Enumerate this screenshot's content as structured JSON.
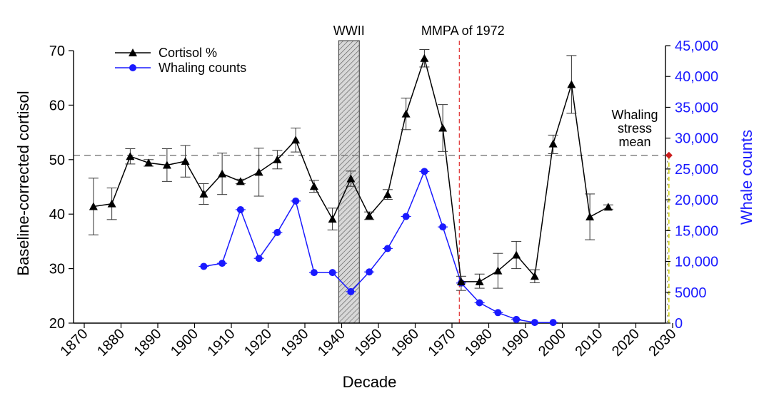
{
  "chart_data": {
    "type": "line",
    "title": "",
    "xlabel": "Decade",
    "ylabel_left": "Baseline-corrected cortisol",
    "ylabel_right": "Whale counts",
    "xlim": [
      1870,
      2030
    ],
    "ylim_left": [
      20,
      70
    ],
    "ylim_right": [
      0,
      45000
    ],
    "x_ticks": [
      "1870",
      "1880",
      "1890",
      "1900",
      "1910",
      "1920",
      "1930",
      "1940",
      "1950",
      "1960",
      "1970",
      "1980",
      "1990",
      "2000",
      "2010",
      "2020",
      "2030"
    ],
    "y_ticks_left": [
      "20",
      "30",
      "40",
      "50",
      "60",
      "70"
    ],
    "y_ticks_right": [
      "0",
      "5000",
      "10,000",
      "15,000",
      "20,000",
      "25,000",
      "30,000",
      "35,000",
      "40,000",
      "45,000"
    ],
    "legend_position": "top-left",
    "colors": {
      "cortisol": "#000000",
      "whaling": "#1a1aff",
      "mmpa_line": "#e03030",
      "stress_mean_marker": "#cc1f1f",
      "stress_mean_line": "#cccc00",
      "wwii_fill": "#d0d0d0"
    },
    "series": [
      {
        "name": "Cortisol %",
        "axis": "left",
        "marker": "triangle",
        "points": [
          {
            "x": 1872.5,
            "y": 41.4,
            "lo": 36.2,
            "hi": 46.6
          },
          {
            "x": 1877.5,
            "y": 41.9,
            "lo": 39.0,
            "hi": 44.8
          },
          {
            "x": 1882.5,
            "y": 50.6,
            "lo": 49.2,
            "hi": 52.0
          },
          {
            "x": 1887.5,
            "y": 49.4,
            "lo": 48.8,
            "hi": 50.0
          },
          {
            "x": 1892.5,
            "y": 49.0,
            "lo": 46.0,
            "hi": 52.0
          },
          {
            "x": 1897.5,
            "y": 49.7,
            "lo": 46.8,
            "hi": 52.6
          },
          {
            "x": 1902.5,
            "y": 43.7,
            "lo": 41.8,
            "hi": 45.6
          },
          {
            "x": 1907.5,
            "y": 47.4,
            "lo": 43.6,
            "hi": 51.2
          },
          {
            "x": 1912.5,
            "y": 46.0,
            "lo": 45.6,
            "hi": 46.4
          },
          {
            "x": 1917.5,
            "y": 47.7,
            "lo": 43.3,
            "hi": 52.1
          },
          {
            "x": 1922.5,
            "y": 50.0,
            "lo": 48.3,
            "hi": 51.7
          },
          {
            "x": 1927.5,
            "y": 53.6,
            "lo": 51.4,
            "hi": 55.8
          },
          {
            "x": 1932.5,
            "y": 45.1,
            "lo": 44.0,
            "hi": 46.2
          },
          {
            "x": 1937.5,
            "y": 39.1,
            "lo": 37.1,
            "hi": 41.1
          },
          {
            "x": 1942.5,
            "y": 46.5,
            "lo": 45.1,
            "hi": 47.9
          },
          {
            "x": 1947.5,
            "y": 39.7,
            "lo": 39.0,
            "hi": 40.4
          },
          {
            "x": 1952.5,
            "y": 43.6,
            "lo": 42.7,
            "hi": 44.5
          },
          {
            "x": 1957.5,
            "y": 58.4,
            "lo": 55.5,
            "hi": 61.3
          },
          {
            "x": 1962.5,
            "y": 68.6,
            "lo": 67.0,
            "hi": 70.2
          },
          {
            "x": 1967.5,
            "y": 55.8,
            "lo": 51.5,
            "hi": 60.1
          },
          {
            "x": 1972.5,
            "y": 27.6,
            "lo": 26.0,
            "hi": 28.6
          },
          {
            "x": 1977.5,
            "y": 27.6,
            "lo": 26.4,
            "hi": 29.0
          },
          {
            "x": 1982.5,
            "y": 29.6,
            "lo": 26.4,
            "hi": 32.8
          },
          {
            "x": 1987.5,
            "y": 32.5,
            "lo": 30.0,
            "hi": 35.0
          },
          {
            "x": 1992.5,
            "y": 28.6,
            "lo": 27.4,
            "hi": 29.8
          },
          {
            "x": 1997.5,
            "y": 52.9,
            "lo": 51.1,
            "hi": 54.5
          },
          {
            "x": 2002.5,
            "y": 63.8,
            "lo": 58.5,
            "hi": 69.1
          },
          {
            "x": 2007.5,
            "y": 39.5,
            "lo": 35.3,
            "hi": 43.7
          },
          {
            "x": 2012.5,
            "y": 41.3,
            "lo": 40.9,
            "hi": 41.7
          }
        ]
      },
      {
        "name": "Whaling counts",
        "axis": "right",
        "marker": "circle",
        "points": [
          {
            "x": 1902.5,
            "y": 9200
          },
          {
            "x": 1907.5,
            "y": 9700
          },
          {
            "x": 1912.5,
            "y": 18400
          },
          {
            "x": 1917.5,
            "y": 10500
          },
          {
            "x": 1922.5,
            "y": 14700
          },
          {
            "x": 1927.5,
            "y": 19800
          },
          {
            "x": 1932.5,
            "y": 8200
          },
          {
            "x": 1937.5,
            "y": 8200
          },
          {
            "x": 1942.5,
            "y": 5100
          },
          {
            "x": 1947.5,
            "y": 8300
          },
          {
            "x": 1952.5,
            "y": 12100
          },
          {
            "x": 1957.5,
            "y": 17300
          },
          {
            "x": 1962.5,
            "y": 24600
          },
          {
            "x": 1967.5,
            "y": 15600
          },
          {
            "x": 1972.5,
            "y": 6500
          },
          {
            "x": 1977.5,
            "y": 3300
          },
          {
            "x": 1982.5,
            "y": 1700
          },
          {
            "x": 1987.5,
            "y": 600
          },
          {
            "x": 1992.5,
            "y": 100
          },
          {
            "x": 1997.5,
            "y": 100
          }
        ]
      }
    ],
    "annotations": {
      "wwii": {
        "label": "WWII",
        "x_start": 1939,
        "x_end": 1945
      },
      "mmpa": {
        "label": "MMPA of 1972",
        "x": 1972
      },
      "stress_mean": {
        "label_lines": [
          "Whaling",
          "stress",
          "mean"
        ],
        "y": 50.8,
        "x": 2029
      }
    }
  }
}
